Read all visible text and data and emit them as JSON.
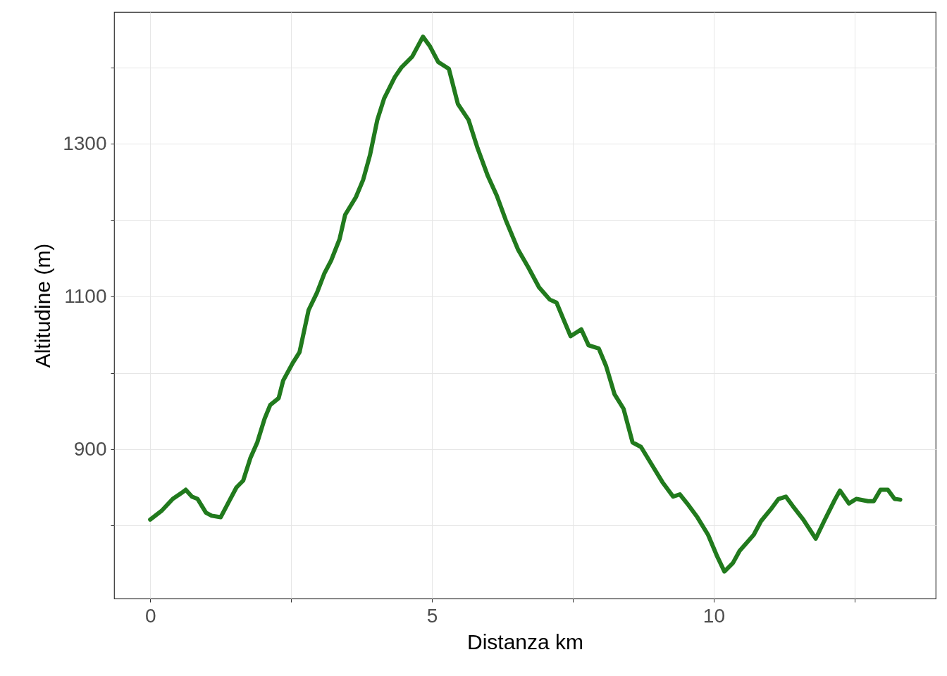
{
  "chart_data": {
    "type": "line",
    "xlabel": "Distanza km",
    "ylabel": "Altitudine (m)",
    "xlim": [
      -0.64,
      13.94
    ],
    "ylim": [
      704.6,
      1472.4
    ],
    "xticks": [
      0,
      {
        "value": 2.5,
        "label": null
      },
      5,
      {
        "value": 7.5,
        "label": null
      },
      10,
      {
        "value": 12.5,
        "label": null
      }
    ],
    "yticks": [
      {
        "value": 800,
        "label": null
      },
      900,
      {
        "value": 1000,
        "label": null
      },
      1100,
      {
        "value": 1200,
        "label": null
      },
      1300,
      {
        "value": 1400,
        "label": null
      }
    ],
    "grid": true,
    "line_style": "solid",
    "marker": "none",
    "x": [
      0,
      0.21,
      0.4,
      0.56,
      0.63,
      0.74,
      0.84,
      0.99,
      1.09,
      1.25,
      1.4,
      1.53,
      1.65,
      1.78,
      1.9,
      2.03,
      2.13,
      2.28,
      2.36,
      2.53,
      2.65,
      2.81,
      2.96,
      3.09,
      3.21,
      3.36,
      3.46,
      3.65,
      3.78,
      3.9,
      4.03,
      4.15,
      4.34,
      4.46,
      4.65,
      4.84,
      4.96,
      5.11,
      5.3,
      5.46,
      5.65,
      5.81,
      5.99,
      6.15,
      6.31,
      6.53,
      6.71,
      6.9,
      7.09,
      7.21,
      7.34,
      7.46,
      7.65,
      7.78,
      7.96,
      8.09,
      8.24,
      8.4,
      8.56,
      8.71,
      8.9,
      9.09,
      9.28,
      9.4,
      9.53,
      9.71,
      9.9,
      10.06,
      10.19,
      10.34,
      10.46,
      10.71,
      10.84,
      11.03,
      11.15,
      11.28,
      11.4,
      11.59,
      11.81,
      11.96,
      12.15,
      12.24,
      12.4,
      12.53,
      12.74,
      12.84,
      12.96,
      13.09,
      13.21,
      13.31
    ],
    "series": [
      {
        "color": "#217a1d",
        "values": [
          808,
          820,
          835,
          843,
          847,
          838,
          835,
          817,
          813,
          811,
          832,
          850,
          859,
          889,
          909,
          940,
          958,
          967,
          990,
          1013,
          1027,
          1082,
          1105,
          1130,
          1147,
          1175,
          1207,
          1230,
          1253,
          1285,
          1331,
          1359,
          1387,
          1400,
          1414,
          1440,
          1428,
          1407,
          1398,
          1352,
          1331,
          1294,
          1258,
          1232,
          1200,
          1161,
          1138,
          1112,
          1096,
          1092,
          1069,
          1048,
          1057,
          1036,
          1032,
          1009,
          972,
          953,
          909,
          903,
          880,
          857,
          838,
          841,
          829,
          811,
          788,
          760,
          740,
          751,
          767,
          788,
          806,
          823,
          835,
          838,
          826,
          808,
          783,
          806,
          834,
          846,
          829,
          835,
          832,
          832,
          847,
          847,
          835,
          834
        ]
      }
    ]
  }
}
